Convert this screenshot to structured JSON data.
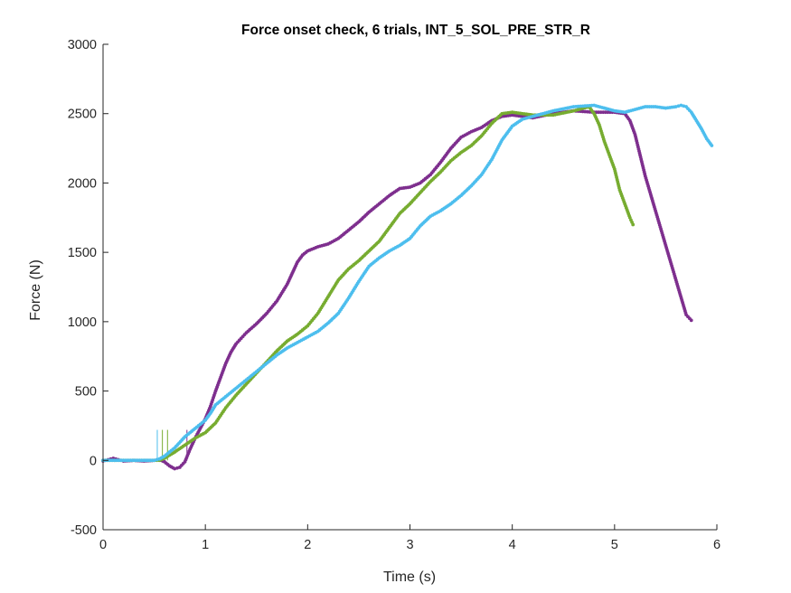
{
  "chart_data": {
    "type": "scatter",
    "title": "Force onset check, 6 trials, INT_5_SOL_PRE_STR_R",
    "xlabel": "Time (s)",
    "ylabel": "Force (N)",
    "xlim": [
      0,
      6
    ],
    "ylim": [
      -500,
      3000
    ],
    "xticks": [
      0,
      1,
      2,
      3,
      4,
      5,
      6
    ],
    "yticks": [
      -500,
      0,
      500,
      1000,
      1500,
      2000,
      2500,
      3000
    ],
    "xtick_labels": [
      "0",
      "1",
      "2",
      "3",
      "4",
      "5",
      "6"
    ],
    "ytick_labels": [
      "-500",
      "0",
      "500",
      "1000",
      "1500",
      "2000",
      "2500",
      "3000"
    ],
    "grid": false,
    "box": false,
    "series": [
      {
        "color": "#7E2F8E",
        "points": [
          [
            0,
            -5
          ],
          [
            0.05,
            5
          ],
          [
            0.1,
            15
          ],
          [
            0.15,
            5
          ],
          [
            0.2,
            -5
          ],
          [
            0.3,
            0
          ],
          [
            0.4,
            -5
          ],
          [
            0.5,
            0
          ],
          [
            0.55,
            5
          ],
          [
            0.6,
            -10
          ],
          [
            0.65,
            -40
          ],
          [
            0.7,
            -60
          ],
          [
            0.75,
            -50
          ],
          [
            0.8,
            -10
          ],
          [
            0.85,
            80
          ],
          [
            0.9,
            160
          ],
          [
            0.95,
            230
          ],
          [
            1.0,
            300
          ],
          [
            1.05,
            390
          ],
          [
            1.1,
            500
          ],
          [
            1.15,
            600
          ],
          [
            1.2,
            700
          ],
          [
            1.25,
            780
          ],
          [
            1.3,
            840
          ],
          [
            1.35,
            880
          ],
          [
            1.4,
            920
          ],
          [
            1.5,
            985
          ],
          [
            1.6,
            1060
          ],
          [
            1.7,
            1150
          ],
          [
            1.8,
            1270
          ],
          [
            1.85,
            1350
          ],
          [
            1.9,
            1430
          ],
          [
            1.95,
            1480
          ],
          [
            2.0,
            1510
          ],
          [
            2.1,
            1540
          ],
          [
            2.2,
            1560
          ],
          [
            2.3,
            1600
          ],
          [
            2.4,
            1660
          ],
          [
            2.5,
            1720
          ],
          [
            2.6,
            1790
          ],
          [
            2.7,
            1850
          ],
          [
            2.8,
            1910
          ],
          [
            2.9,
            1960
          ],
          [
            3.0,
            1970
          ],
          [
            3.1,
            2000
          ],
          [
            3.2,
            2060
          ],
          [
            3.3,
            2150
          ],
          [
            3.4,
            2250
          ],
          [
            3.5,
            2330
          ],
          [
            3.6,
            2370
          ],
          [
            3.7,
            2400
          ],
          [
            3.8,
            2450
          ],
          [
            3.9,
            2480
          ],
          [
            4.0,
            2490
          ],
          [
            4.2,
            2470
          ],
          [
            4.4,
            2500
          ],
          [
            4.6,
            2520
          ],
          [
            4.8,
            2510
          ],
          [
            5.0,
            2510
          ],
          [
            5.1,
            2500
          ],
          [
            5.15,
            2450
          ],
          [
            5.2,
            2350
          ],
          [
            5.25,
            2200
          ],
          [
            5.3,
            2050
          ],
          [
            5.4,
            1800
          ],
          [
            5.5,
            1550
          ],
          [
            5.6,
            1300
          ],
          [
            5.7,
            1050
          ],
          [
            5.75,
            1010
          ]
        ]
      },
      {
        "color": "#77AC30",
        "points": [
          [
            0,
            0
          ],
          [
            0.2,
            0
          ],
          [
            0.4,
            0
          ],
          [
            0.5,
            0
          ],
          [
            0.55,
            0
          ],
          [
            0.6,
            15
          ],
          [
            0.7,
            60
          ],
          [
            0.8,
            110
          ],
          [
            0.9,
            160
          ],
          [
            1.0,
            200
          ],
          [
            1.1,
            270
          ],
          [
            1.2,
            380
          ],
          [
            1.3,
            470
          ],
          [
            1.4,
            550
          ],
          [
            1.5,
            630
          ],
          [
            1.6,
            710
          ],
          [
            1.7,
            790
          ],
          [
            1.8,
            860
          ],
          [
            1.9,
            910
          ],
          [
            2.0,
            970
          ],
          [
            2.1,
            1060
          ],
          [
            2.2,
            1180
          ],
          [
            2.3,
            1300
          ],
          [
            2.4,
            1380
          ],
          [
            2.5,
            1440
          ],
          [
            2.6,
            1510
          ],
          [
            2.7,
            1580
          ],
          [
            2.8,
            1680
          ],
          [
            2.9,
            1780
          ],
          [
            3.0,
            1850
          ],
          [
            3.1,
            1930
          ],
          [
            3.2,
            2010
          ],
          [
            3.3,
            2080
          ],
          [
            3.4,
            2160
          ],
          [
            3.5,
            2220
          ],
          [
            3.6,
            2270
          ],
          [
            3.7,
            2340
          ],
          [
            3.8,
            2430
          ],
          [
            3.9,
            2500
          ],
          [
            4.0,
            2510
          ],
          [
            4.1,
            2500
          ],
          [
            4.2,
            2490
          ],
          [
            4.4,
            2490
          ],
          [
            4.6,
            2520
          ],
          [
            4.75,
            2550
          ],
          [
            4.8,
            2500
          ],
          [
            4.85,
            2420
          ],
          [
            4.9,
            2300
          ],
          [
            4.95,
            2200
          ],
          [
            5.0,
            2100
          ],
          [
            5.05,
            1950
          ],
          [
            5.1,
            1850
          ],
          [
            5.15,
            1750
          ],
          [
            5.18,
            1700
          ]
        ]
      },
      {
        "color": "#4DBEEE",
        "points": [
          [
            0,
            0
          ],
          [
            0.2,
            0
          ],
          [
            0.4,
            0
          ],
          [
            0.5,
            0
          ],
          [
            0.55,
            10
          ],
          [
            0.6,
            30
          ],
          [
            0.7,
            90
          ],
          [
            0.8,
            170
          ],
          [
            0.9,
            230
          ],
          [
            1.0,
            290
          ],
          [
            1.05,
            340
          ],
          [
            1.1,
            400
          ],
          [
            1.2,
            460
          ],
          [
            1.3,
            520
          ],
          [
            1.4,
            580
          ],
          [
            1.5,
            640
          ],
          [
            1.6,
            700
          ],
          [
            1.7,
            760
          ],
          [
            1.8,
            810
          ],
          [
            1.9,
            850
          ],
          [
            2.0,
            890
          ],
          [
            2.1,
            930
          ],
          [
            2.2,
            990
          ],
          [
            2.3,
            1060
          ],
          [
            2.4,
            1170
          ],
          [
            2.5,
            1290
          ],
          [
            2.6,
            1400
          ],
          [
            2.7,
            1460
          ],
          [
            2.8,
            1510
          ],
          [
            2.9,
            1550
          ],
          [
            3.0,
            1600
          ],
          [
            3.1,
            1690
          ],
          [
            3.2,
            1760
          ],
          [
            3.3,
            1800
          ],
          [
            3.4,
            1850
          ],
          [
            3.5,
            1910
          ],
          [
            3.6,
            1980
          ],
          [
            3.7,
            2060
          ],
          [
            3.8,
            2170
          ],
          [
            3.9,
            2310
          ],
          [
            4.0,
            2410
          ],
          [
            4.1,
            2460
          ],
          [
            4.2,
            2480
          ],
          [
            4.4,
            2520
          ],
          [
            4.6,
            2550
          ],
          [
            4.8,
            2560
          ],
          [
            5.0,
            2520
          ],
          [
            5.1,
            2510
          ],
          [
            5.2,
            2530
          ],
          [
            5.3,
            2550
          ],
          [
            5.4,
            2550
          ],
          [
            5.5,
            2540
          ],
          [
            5.6,
            2550
          ],
          [
            5.65,
            2560
          ],
          [
            5.7,
            2550
          ],
          [
            5.75,
            2510
          ],
          [
            5.8,
            2450
          ],
          [
            5.85,
            2390
          ],
          [
            5.9,
            2320
          ],
          [
            5.95,
            2270
          ]
        ]
      }
    ],
    "onset_markers": [
      {
        "x": 0.53,
        "top": 220,
        "color": "#4DBEEE"
      },
      {
        "x": 0.58,
        "top": 220,
        "color": "#77AC30"
      },
      {
        "x": 0.63,
        "top": 220,
        "color": "#77AC30"
      },
      {
        "x": 0.82,
        "top": 220,
        "color": "#7E2F8E"
      }
    ]
  }
}
